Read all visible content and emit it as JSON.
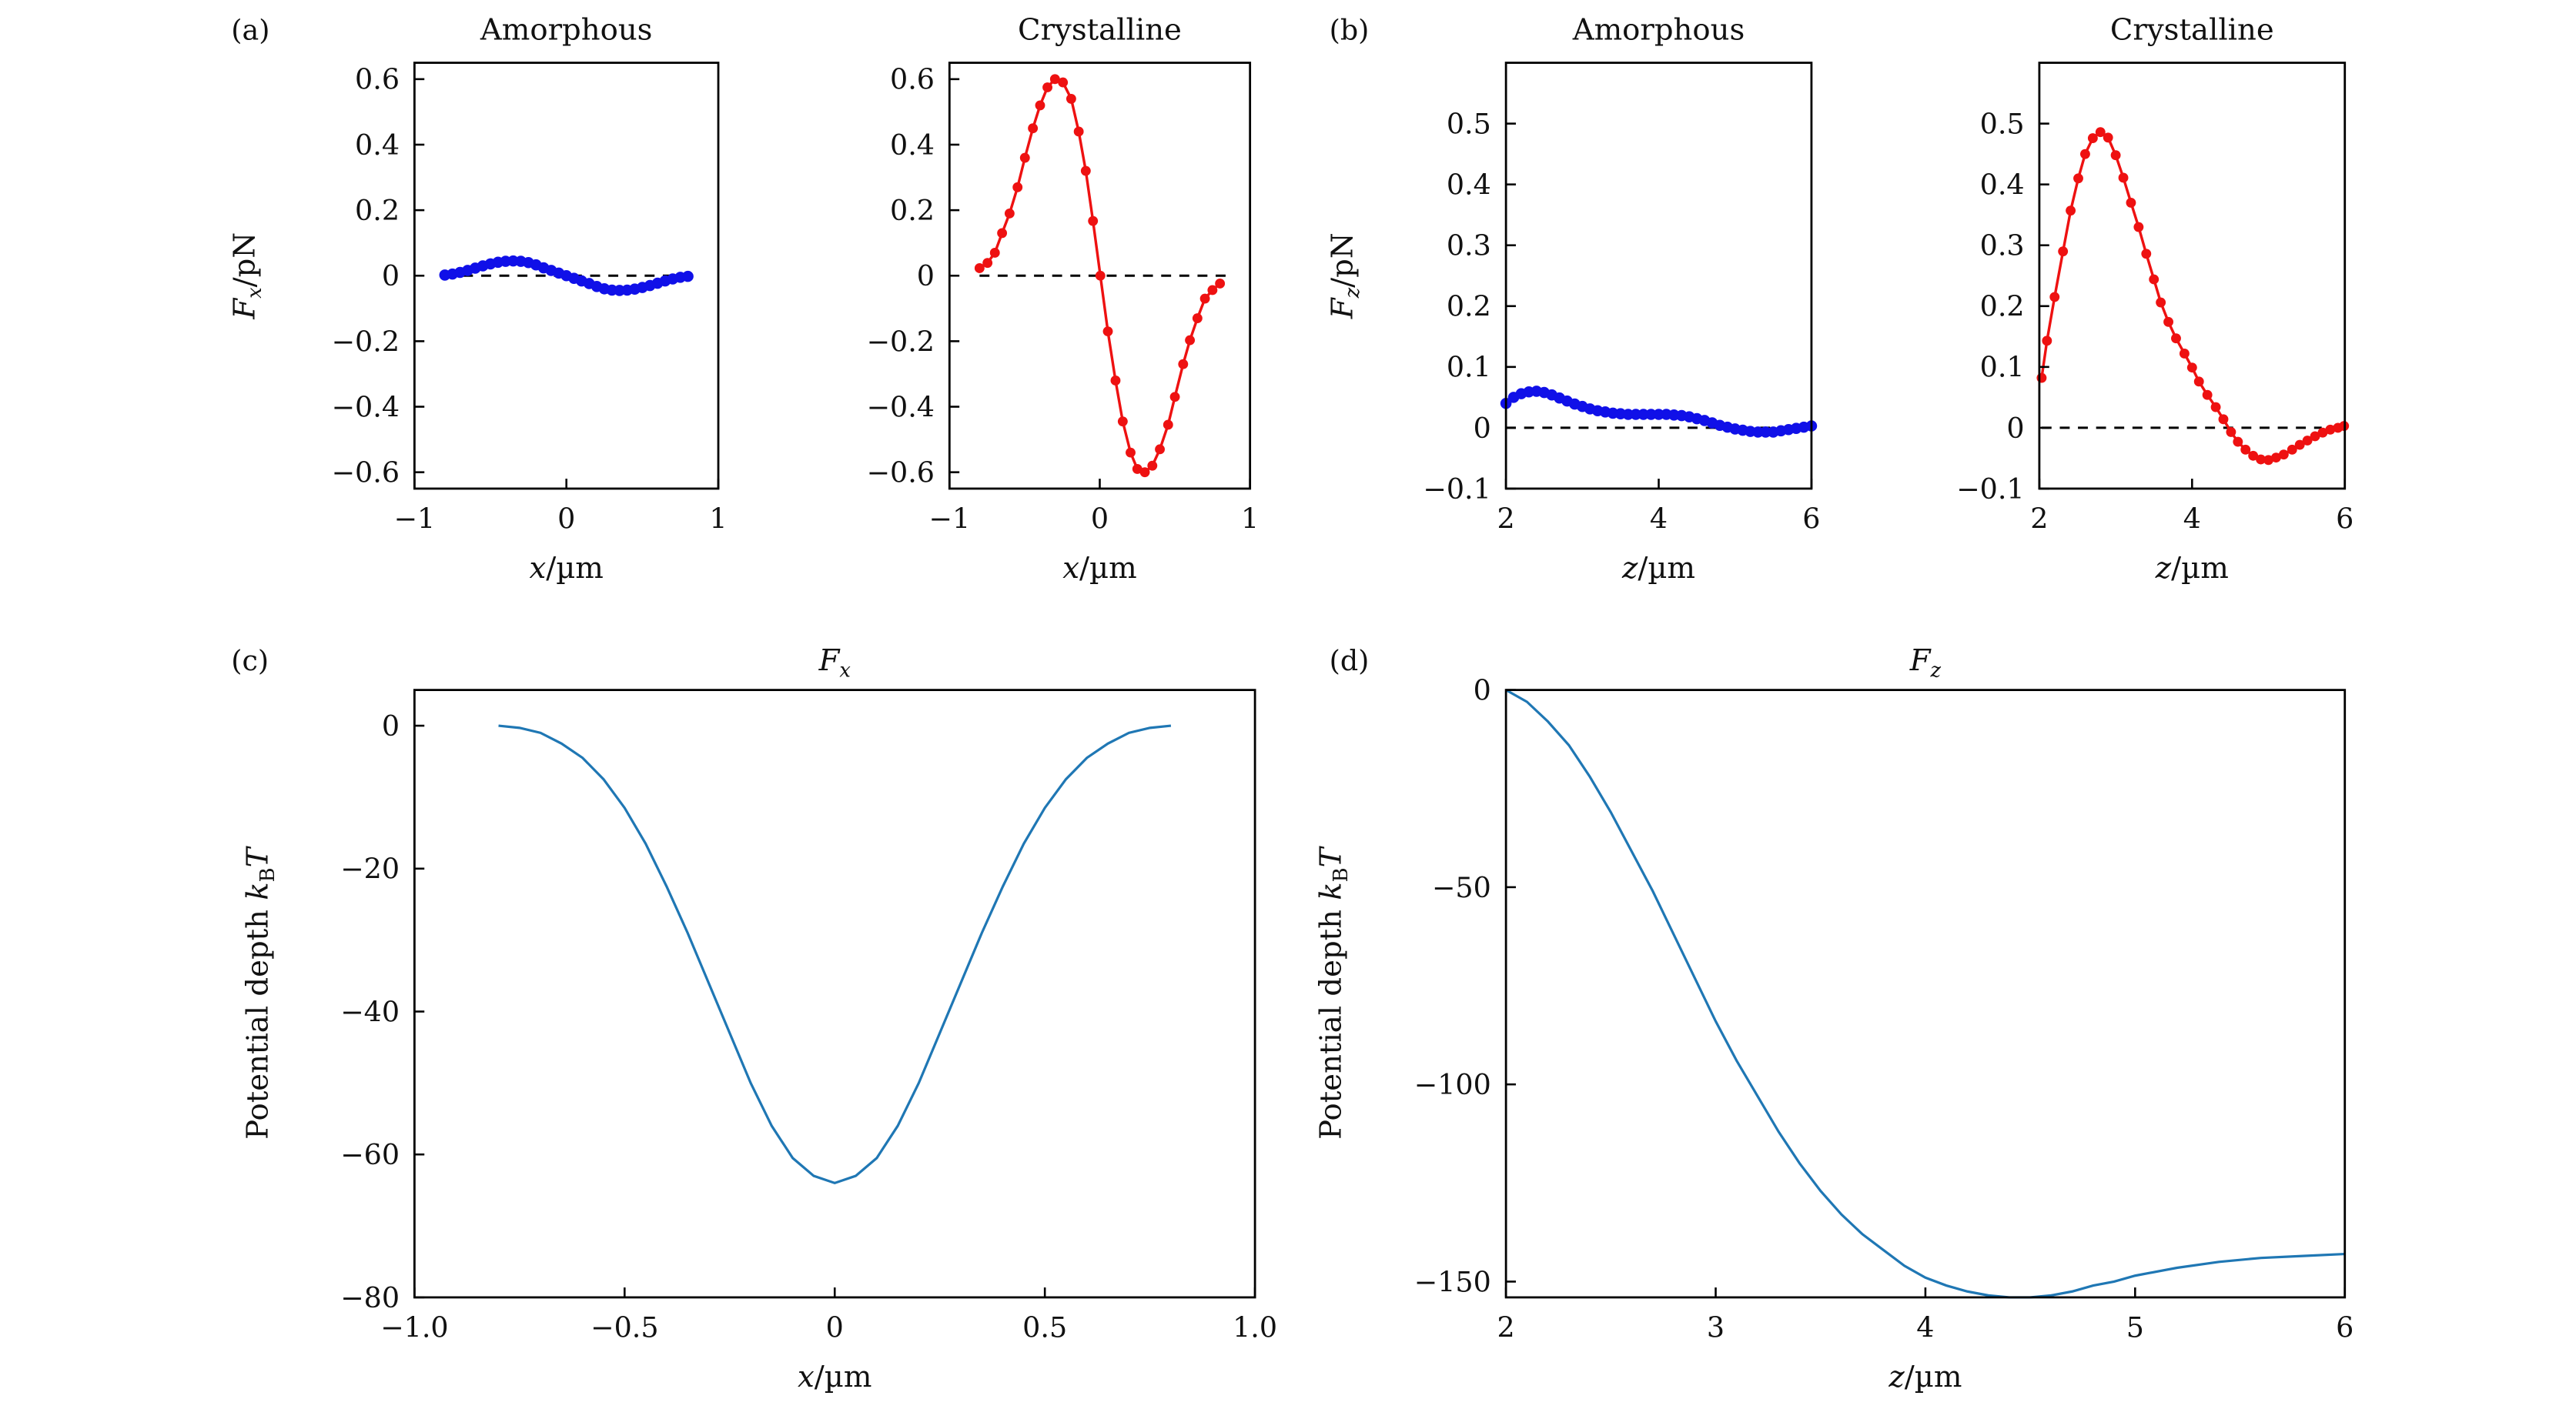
{
  "chart_data": [
    {
      "panel": "(a)",
      "title": "Amorphous",
      "type": "line",
      "xlabel": {
        "var": "x",
        "unit": "/µm"
      },
      "ylabel": {
        "var": "F",
        "sub": "x",
        "unit": "/pN"
      },
      "xlim": [
        -1,
        1
      ],
      "ylim": [
        -0.65,
        0.65
      ],
      "xticks": [
        -1,
        0,
        1
      ],
      "xtick_labels": [
        "−1",
        "0",
        "1"
      ],
      "yticks": [
        0.6,
        0.4,
        0.2,
        0,
        -0.2,
        -0.4,
        -0.6
      ],
      "ytick_labels": [
        "0.6",
        "0.4",
        "0.2",
        "0",
        "−0.2",
        "−0.4",
        "−0.6"
      ],
      "zero_line": true,
      "color": "#1010e8",
      "markers": true,
      "x": [
        -0.8,
        -0.75,
        -0.7,
        -0.65,
        -0.6,
        -0.55,
        -0.5,
        -0.45,
        -0.4,
        -0.35,
        -0.3,
        -0.25,
        -0.2,
        -0.15,
        -0.1,
        -0.05,
        0,
        0.05,
        0.1,
        0.15,
        0.2,
        0.25,
        0.3,
        0.35,
        0.4,
        0.45,
        0.5,
        0.55,
        0.6,
        0.65,
        0.7,
        0.75,
        0.8
      ],
      "y": [
        0.002,
        0.005,
        0.01,
        0.016,
        0.023,
        0.03,
        0.036,
        0.041,
        0.044,
        0.045,
        0.044,
        0.04,
        0.033,
        0.024,
        0.016,
        0.008,
        0,
        -0.008,
        -0.016,
        -0.024,
        -0.033,
        -0.04,
        -0.044,
        -0.045,
        -0.044,
        -0.041,
        -0.036,
        -0.03,
        -0.023,
        -0.016,
        -0.01,
        -0.005,
        -0.002
      ]
    },
    {
      "panel": "",
      "title": "Crystalline",
      "type": "line",
      "xlabel": {
        "var": "x",
        "unit": "/µm"
      },
      "ylabel": null,
      "xlim": [
        -1,
        1
      ],
      "ylim": [
        -0.65,
        0.65
      ],
      "xticks": [
        -1,
        0,
        1
      ],
      "xtick_labels": [
        "−1",
        "0",
        "1"
      ],
      "yticks": [
        0.6,
        0.4,
        0.2,
        0,
        -0.2,
        -0.4,
        -0.6
      ],
      "ytick_labels": [
        "0.6",
        "0.4",
        "0.2",
        "0",
        "−0.2",
        "−0.4",
        "−0.6"
      ],
      "zero_line": true,
      "color": "#ee1111",
      "markers": true,
      "x": [
        -0.8,
        -0.747,
        -0.698,
        -0.65,
        -0.6,
        -0.547,
        -0.498,
        -0.445,
        -0.397,
        -0.348,
        -0.298,
        -0.245,
        -0.19,
        -0.14,
        -0.093,
        -0.045,
        0.004,
        0.054,
        0.105,
        0.153,
        0.205,
        0.25,
        0.3,
        0.35,
        0.4,
        0.455,
        0.5,
        0.555,
        0.6,
        0.65,
        0.7,
        0.75,
        0.8
      ],
      "y": [
        0.023,
        0.039,
        0.07,
        0.13,
        0.19,
        0.27,
        0.36,
        0.45,
        0.52,
        0.575,
        0.6,
        0.59,
        0.54,
        0.44,
        0.32,
        0.167,
        0.0,
        -0.17,
        -0.32,
        -0.445,
        -0.54,
        -0.59,
        -0.6,
        -0.58,
        -0.53,
        -0.455,
        -0.37,
        -0.27,
        -0.197,
        -0.13,
        -0.07,
        -0.044,
        -0.024
      ]
    },
    {
      "panel": "(b)",
      "title": "Amorphous",
      "type": "line",
      "xlabel": {
        "var": "z",
        "unit": "/µm"
      },
      "ylabel": {
        "var": "F",
        "sub": "z",
        "unit": "/pN"
      },
      "xlim": [
        2,
        6
      ],
      "ylim": [
        -0.1,
        0.6
      ],
      "xticks": [
        2,
        4,
        6
      ],
      "xtick_labels": [
        "2",
        "4",
        "6"
      ],
      "yticks": [
        0.5,
        0.4,
        0.3,
        0.2,
        0.1,
        0,
        -0.1
      ],
      "ytick_labels": [
        "0.5",
        "0.4",
        "0.3",
        "0.2",
        "0.1",
        "0",
        "−0.1"
      ],
      "zero_line": true,
      "color": "#1010e8",
      "markers": true,
      "x": [
        2.0,
        2.1,
        2.2,
        2.3,
        2.4,
        2.5,
        2.6,
        2.7,
        2.8,
        2.9,
        3.0,
        3.1,
        3.2,
        3.3,
        3.4,
        3.5,
        3.6,
        3.7,
        3.8,
        3.9,
        4.0,
        4.1,
        4.2,
        4.3,
        4.4,
        4.5,
        4.6,
        4.7,
        4.8,
        4.9,
        5.0,
        5.1,
        5.2,
        5.3,
        5.4,
        5.5,
        5.6,
        5.7,
        5.8,
        5.9,
        6.0
      ],
      "y": [
        0.04,
        0.05,
        0.056,
        0.059,
        0.06,
        0.058,
        0.054,
        0.049,
        0.044,
        0.039,
        0.035,
        0.031,
        0.028,
        0.026,
        0.024,
        0.023,
        0.022,
        0.022,
        0.022,
        0.022,
        0.022,
        0.022,
        0.021,
        0.02,
        0.018,
        0.015,
        0.012,
        0.008,
        0.004,
        0.001,
        -0.002,
        -0.004,
        -0.006,
        -0.007,
        -0.007,
        -0.007,
        -0.005,
        -0.003,
        -0.001,
        0.001,
        0.003
      ]
    },
    {
      "panel": "",
      "title": "Crystalline",
      "type": "line",
      "xlabel": {
        "var": "z",
        "unit": "/µm"
      },
      "ylabel": null,
      "xlim": [
        2,
        6
      ],
      "ylim": [
        -0.1,
        0.6
      ],
      "xticks": [
        2,
        4,
        6
      ],
      "xtick_labels": [
        "2",
        "4",
        "6"
      ],
      "yticks": [
        0.5,
        0.4,
        0.3,
        0.2,
        0.1,
        0,
        -0.1
      ],
      "ytick_labels": [
        "0.5",
        "0.4",
        "0.3",
        "0.2",
        "0.1",
        "0",
        "−0.1"
      ],
      "zero_line": true,
      "color": "#ee1111",
      "markers": true,
      "x": [
        2.03,
        2.1,
        2.2,
        2.31,
        2.41,
        2.51,
        2.6,
        2.7,
        2.8,
        2.9,
        3.0,
        3.1,
        3.2,
        3.3,
        3.4,
        3.5,
        3.59,
        3.69,
        3.79,
        3.9,
        4.0,
        4.09,
        4.2,
        4.31,
        4.41,
        4.51,
        4.6,
        4.7,
        4.8,
        4.9,
        5.0,
        5.1,
        5.2,
        5.31,
        5.41,
        5.51,
        5.61,
        5.71,
        5.81,
        5.91,
        5.99
      ],
      "y": [
        0.082,
        0.143,
        0.215,
        0.29,
        0.357,
        0.41,
        0.45,
        0.476,
        0.486,
        0.477,
        0.448,
        0.411,
        0.37,
        0.33,
        0.286,
        0.244,
        0.206,
        0.174,
        0.147,
        0.122,
        0.099,
        0.076,
        0.054,
        0.034,
        0.014,
        -0.007,
        -0.023,
        -0.036,
        -0.046,
        -0.052,
        -0.053,
        -0.049,
        -0.044,
        -0.036,
        -0.028,
        -0.021,
        -0.014,
        -0.008,
        -0.003,
        0.0,
        0.003
      ]
    },
    {
      "panel": "(c)",
      "title": {
        "var": "F",
        "sub": "x"
      },
      "type": "line",
      "xlabel": {
        "var": "x",
        "unit": "/µm"
      },
      "ylabel": {
        "text": "Potential depth ",
        "var": "k",
        "sub": "B",
        "var2": "T"
      },
      "xlim": [
        -1,
        1
      ],
      "ylim": [
        -80,
        5
      ],
      "xticks": [
        -1,
        -0.5,
        0,
        0.5,
        1
      ],
      "xtick_labels": [
        "−1.0",
        "−0.5",
        "0",
        "0.5",
        "1.0"
      ],
      "yticks": [
        0,
        -20,
        -40,
        -60,
        -80
      ],
      "ytick_labels": [
        "0",
        "−20",
        "−40",
        "−60",
        "−80"
      ],
      "zero_line": false,
      "color": "#1f77b4",
      "markers": false,
      "x": [
        -0.8,
        -0.75,
        -0.7,
        -0.65,
        -0.6,
        -0.55,
        -0.5,
        -0.45,
        -0.4,
        -0.35,
        -0.3,
        -0.25,
        -0.2,
        -0.15,
        -0.1,
        -0.05,
        0,
        0.05,
        0.1,
        0.15,
        0.2,
        0.25,
        0.3,
        0.35,
        0.4,
        0.45,
        0.5,
        0.55,
        0.6,
        0.65,
        0.7,
        0.75,
        0.8
      ],
      "y": [
        0,
        -0.3,
        -1,
        -2.5,
        -4.5,
        -7.5,
        -11.5,
        -16.5,
        -22.5,
        -29,
        -36,
        -43,
        -50,
        -56,
        -60.5,
        -63,
        -64,
        -63,
        -60.5,
        -56,
        -50,
        -43,
        -36,
        -29,
        -22.5,
        -16.5,
        -11.5,
        -7.5,
        -4.5,
        -2.5,
        -1,
        -0.3,
        0
      ]
    },
    {
      "panel": "(d)",
      "title": {
        "var": "F",
        "sub": "z"
      },
      "type": "line",
      "xlabel": {
        "var": "z",
        "unit": "/µm"
      },
      "ylabel": {
        "text": "Potential depth ",
        "var": "k",
        "sub": "B",
        "var2": "T"
      },
      "xlim": [
        2,
        6
      ],
      "ylim": [
        -154,
        0
      ],
      "xticks": [
        2,
        3,
        4,
        5,
        6
      ],
      "xtick_labels": [
        "2",
        "3",
        "4",
        "5",
        "6"
      ],
      "yticks": [
        0,
        -50,
        -100,
        -150
      ],
      "ytick_labels": [
        "0",
        "−50",
        "−100",
        "−150"
      ],
      "zero_line": false,
      "color": "#1f77b4",
      "markers": false,
      "x": [
        2.0,
        2.1,
        2.2,
        2.3,
        2.4,
        2.5,
        2.6,
        2.7,
        2.8,
        2.9,
        3.0,
        3.1,
        3.2,
        3.3,
        3.4,
        3.5,
        3.6,
        3.7,
        3.8,
        3.9,
        4.0,
        4.1,
        4.2,
        4.3,
        4.4,
        4.5,
        4.6,
        4.7,
        4.8,
        4.9,
        5.0,
        5.2,
        5.4,
        5.6,
        5.8,
        6.0
      ],
      "y": [
        0,
        -3,
        -8,
        -14,
        -22,
        -31,
        -41,
        -51,
        -62,
        -73,
        -84,
        -94,
        -103,
        -112,
        -120,
        -127,
        -133,
        -138,
        -142,
        -146,
        -149,
        -151,
        -152.5,
        -153.5,
        -154,
        -154,
        -153.5,
        -152.5,
        -151,
        -150,
        -148.5,
        -146.5,
        -145,
        -144,
        -143.5,
        -143
      ]
    }
  ]
}
